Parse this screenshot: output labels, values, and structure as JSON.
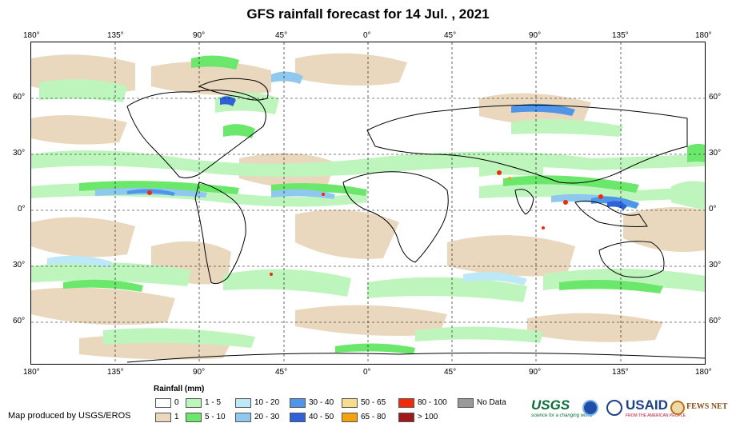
{
  "title": "GFS rainfall forecast for 14 Jul. , 2021",
  "axes": {
    "lon_labels": [
      "180°",
      "135°",
      "90°",
      "45°",
      "0°",
      "45°",
      "90°",
      "135°",
      "180°"
    ],
    "lat_labels": [
      "60°",
      "30°",
      "0°",
      "30°",
      "60°"
    ]
  },
  "legend": {
    "title": "Rainfall (mm)",
    "items": [
      {
        "label": "0",
        "color": "#ffffff"
      },
      {
        "label": "1",
        "color": "#ead8be"
      },
      {
        "label": "1 - 5",
        "color": "#bdf5bd"
      },
      {
        "label": "5 - 10",
        "color": "#6be76b"
      },
      {
        "label": "10 - 20",
        "color": "#bde8f5"
      },
      {
        "label": "20 - 30",
        "color": "#8ec8ee"
      },
      {
        "label": "30 - 40",
        "color": "#4f95e8"
      },
      {
        "label": "40 - 50",
        "color": "#2f62d8"
      },
      {
        "label": "50 - 65",
        "color": "#f5dc8e"
      },
      {
        "label": "65 - 80",
        "color": "#f5a20f"
      },
      {
        "label": "80 - 100",
        "color": "#f02a0a"
      },
      {
        "label": "> 100",
        "color": "#a01818"
      },
      {
        "label": "No Data",
        "color": "#9a9a9a"
      }
    ]
  },
  "credit": "Map produced by USGS/EROS",
  "logos": {
    "usgs": "USGS",
    "usgs_tagline": "science for a changing world",
    "usaid": "USAID",
    "usaid_tagline": "FROM THE AMERICAN PEOPLE",
    "fewsnet": "FEWS NET"
  },
  "colors": {
    "land": "#ffffff",
    "trace": "#ead8be",
    "light_green": "#bdf5bd",
    "green": "#6be76b",
    "light_blue": "#bde8f5",
    "blue": "#8ec8ee",
    "dark_blue": "#4f95e8",
    "red": "#f02a0a"
  }
}
